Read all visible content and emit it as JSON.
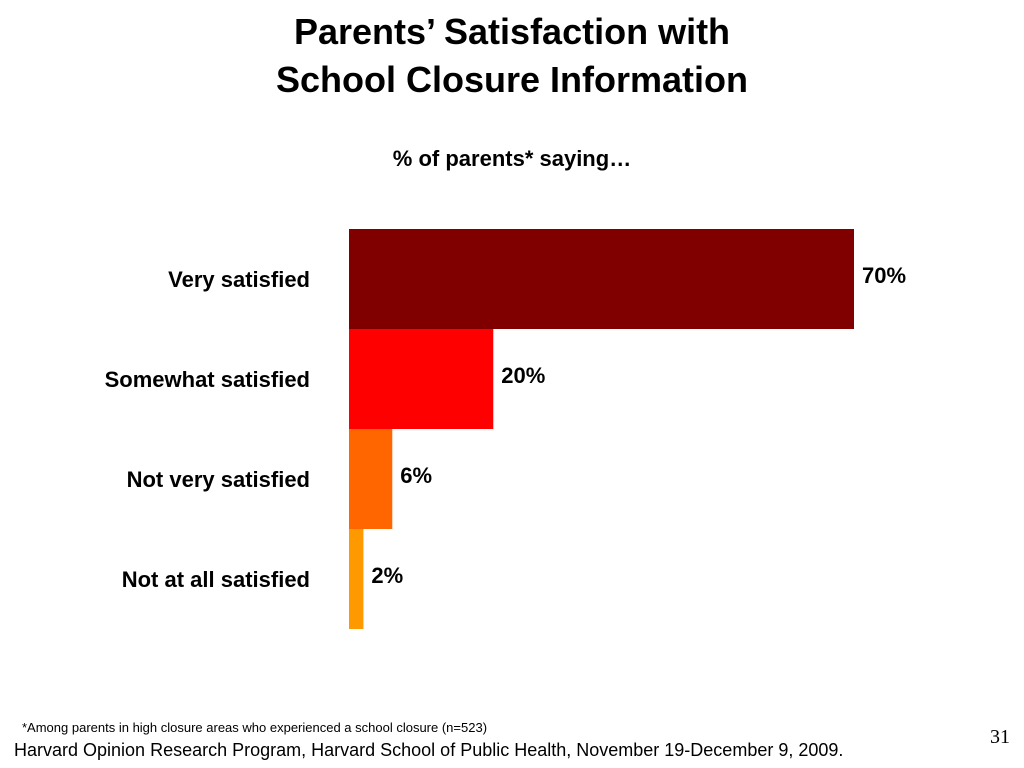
{
  "slide": {
    "title_line1": "Parents’ Satisfaction with",
    "title_line2": "School Closure Information",
    "subtitle": "% of parents* saying…",
    "footnote": "*Among parents in high closure areas who experienced a school closure (n=523)",
    "source": "Harvard Opinion Research Program, Harvard School of Public Health, November 19-December 9, 2009.",
    "page_number": "31"
  },
  "chart_data": {
    "type": "bar",
    "orientation": "horizontal",
    "categories": [
      "Very satisfied",
      "Somewhat satisfied",
      "Not very satisfied",
      "Not at all satisfied"
    ],
    "values": [
      70,
      20,
      6,
      2
    ],
    "value_labels": [
      "70%",
      "20%",
      "6%",
      "2%"
    ],
    "colors": [
      "#800000",
      "#ff0000",
      "#ff6600",
      "#ff9900"
    ],
    "xlim": [
      0,
      70
    ],
    "grid": false,
    "legend": "none"
  }
}
